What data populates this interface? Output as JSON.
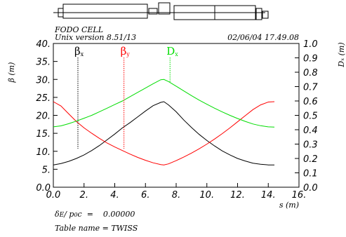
{
  "header": {
    "title": "FODO CELL",
    "version": "Unix version 8.51/13",
    "timestamp": "02/06/04  17.49.08"
  },
  "chart_data": {
    "type": "line",
    "x": [
      0.0,
      0.5,
      1.0,
      1.5,
      2.0,
      2.5,
      3.0,
      3.5,
      4.0,
      4.5,
      5.0,
      5.5,
      6.0,
      6.5,
      7.0,
      7.2,
      7.5,
      8.0,
      8.5,
      9.0,
      9.5,
      10.0,
      10.5,
      11.0,
      11.5,
      12.0,
      12.5,
      13.0,
      13.5,
      14.0,
      14.4
    ],
    "series": [
      {
        "name": "β x",
        "axis": "left",
        "color": "#000000",
        "values": [
          6.2,
          6.6,
          7.2,
          8.0,
          9.0,
          10.2,
          11.6,
          13.2,
          14.8,
          16.5,
          18.0,
          19.6,
          21.2,
          22.7,
          23.6,
          23.8,
          22.9,
          21.0,
          18.7,
          16.6,
          14.7,
          13.0,
          11.5,
          10.1,
          9.0,
          8.0,
          7.3,
          6.7,
          6.4,
          6.2,
          6.2
        ]
      },
      {
        "name": "β y",
        "axis": "left",
        "color": "#ff0000",
        "values": [
          23.8,
          22.6,
          20.4,
          18.3,
          16.5,
          15.0,
          13.6,
          12.3,
          11.2,
          10.2,
          9.2,
          8.3,
          7.5,
          6.8,
          6.3,
          6.2,
          6.5,
          7.4,
          8.4,
          9.5,
          10.7,
          12.0,
          13.4,
          14.9,
          16.5,
          18.2,
          19.9,
          21.6,
          22.9,
          23.7,
          23.8
        ]
      },
      {
        "name": "D x",
        "axis": "right",
        "color": "#00dd00",
        "values": [
          0.42,
          0.427,
          0.442,
          0.46,
          0.48,
          0.5,
          0.525,
          0.55,
          0.575,
          0.6,
          0.63,
          0.66,
          0.69,
          0.72,
          0.748,
          0.75,
          0.735,
          0.703,
          0.67,
          0.637,
          0.606,
          0.577,
          0.55,
          0.524,
          0.5,
          0.478,
          0.458,
          0.44,
          0.428,
          0.42,
          0.418
        ]
      }
    ],
    "markers": [
      {
        "label": "β",
        "sub": "x",
        "x": 1.6,
        "color": "#000000"
      },
      {
        "label": "β",
        "sub": "y",
        "x": 4.6,
        "color": "#ff0000"
      },
      {
        "label": "D",
        "sub": "x",
        "x": 7.6,
        "color": "#00dd00"
      }
    ],
    "xlabel": "s (m)",
    "ylabel_left": "β  (m)",
    "ylabel_right": "D x  (m)",
    "xlim": [
      0.0,
      16.0
    ],
    "ylim_left": [
      0.0,
      40.0
    ],
    "ylim_right": [
      0.0,
      1.0
    ],
    "xticks": [
      "0.0",
      "2.",
      "4.",
      "6.",
      "8.",
      "10.",
      "12.",
      "14.",
      "16."
    ],
    "yticks_left": [
      "0.0",
      "5.",
      "10.",
      "15.",
      "20.",
      "25.",
      "30.",
      "35.",
      "40."
    ],
    "yticks_right": [
      "0.0",
      "0.1",
      "0.2",
      "0.3",
      "0.4",
      "0.5",
      "0.6",
      "0.7",
      "0.8",
      "0.9",
      "1.0"
    ],
    "grid": false
  },
  "footer": {
    "dp_label": "δE/ p0c  =     0.00000",
    "table_label": "Table name = TWISS"
  }
}
